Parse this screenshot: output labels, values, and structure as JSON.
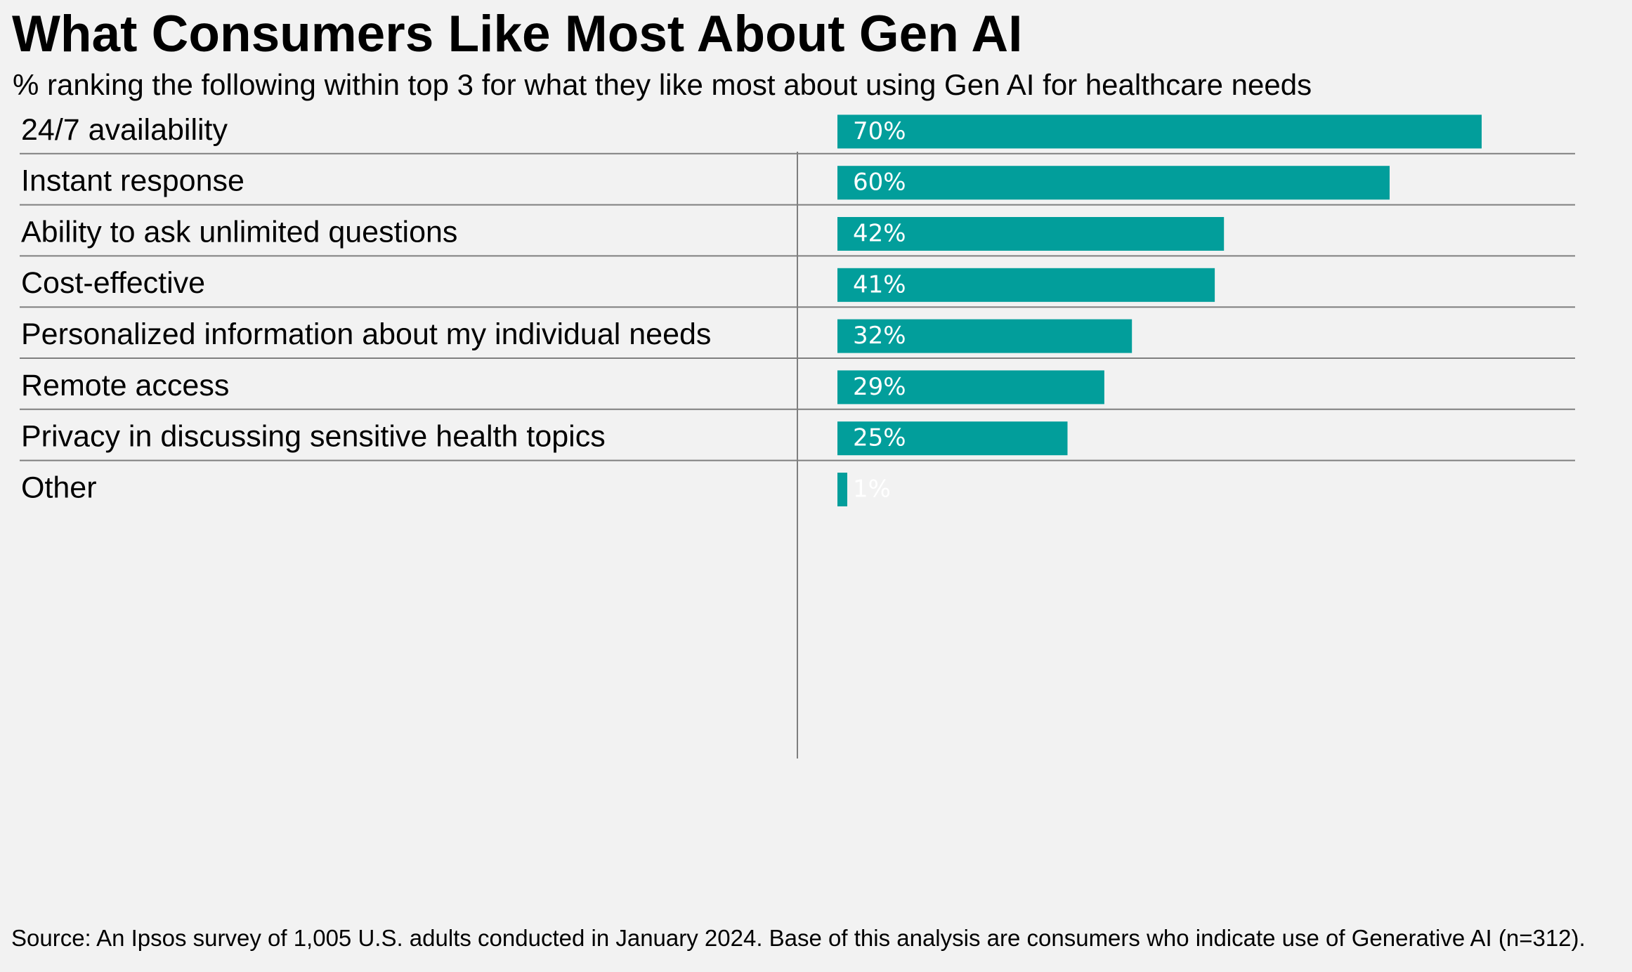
{
  "title": "What Consumers Like Most About Gen AI",
  "subtitle": "% ranking the following within top 3 for what they like most about using Gen AI for healthcare needs",
  "source": "Source: An Ipsos survey of 1,005 U.S. adults conducted in January 2024. Base of this analysis are consumers who indicate use of Generative AI (n=312).",
  "colors": {
    "bar": "#029e9b",
    "background": "#f2f2f2",
    "rule": "#7f7f7f"
  },
  "chart_data": {
    "type": "bar",
    "orientation": "horizontal",
    "categories": [
      "24/7 availability",
      "Instant response",
      "Ability to ask unlimited questions",
      "Cost-effective",
      "Personalized information about my individual needs",
      "Remote access",
      "Privacy in discussing sensitive health topics",
      "Other"
    ],
    "values": [
      70,
      60,
      42,
      41,
      32,
      29,
      25,
      1
    ],
    "value_labels": [
      "70%",
      "60%",
      "42%",
      "41%",
      "32%",
      "29%",
      "25%",
      "1%"
    ],
    "xlim": [
      0,
      80
    ],
    "grid": false,
    "legend": "none"
  }
}
